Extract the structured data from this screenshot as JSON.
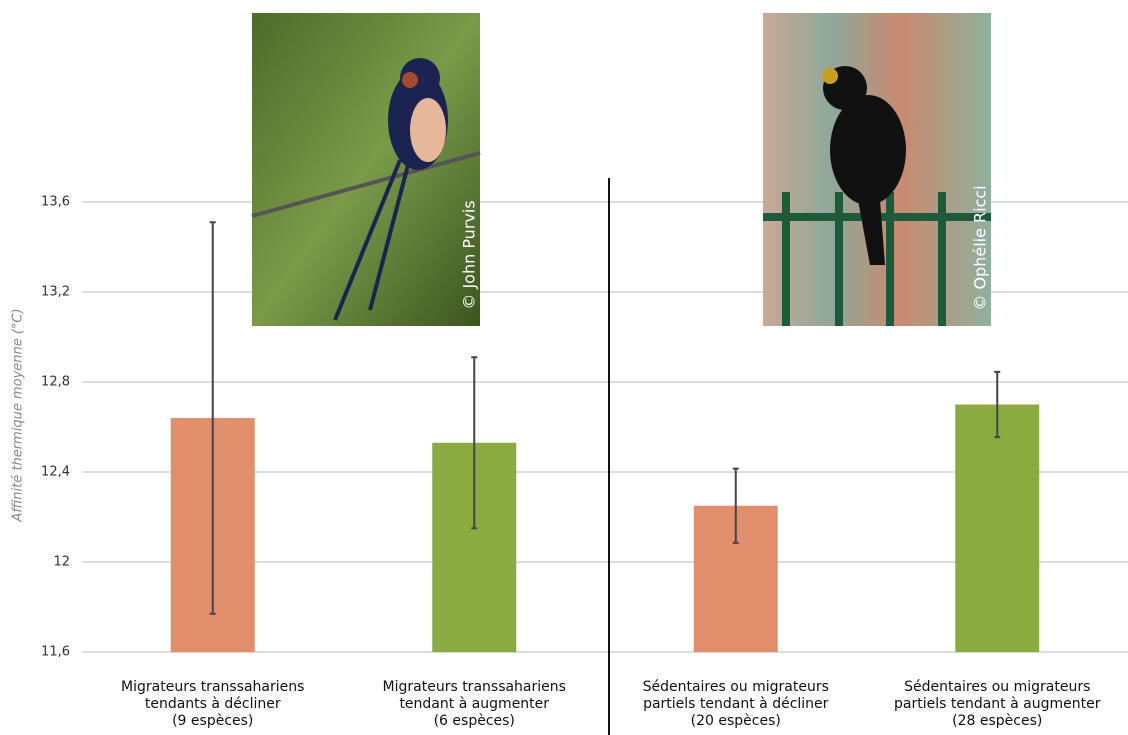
{
  "chart_data": {
    "type": "bar",
    "y_label": "Affinité thermique moyenne (°C)",
    "categories": [
      "Migrateurs transsahariens\ntendants à décliner\n(9 espèces)",
      "Migrateurs transsahariens\ntendant à augmenter\n(6 espèces)",
      "Sédentaires ou migrateurs\npartiels tendant à décliner\n(20 espèces)",
      "Sédentaires ou migrateurs\npartiels tendant à augmenter\n(28 espèces)"
    ],
    "values": [
      12.64,
      12.53,
      12.25,
      12.7
    ],
    "errors": [
      0.87,
      0.38,
      0.165,
      0.145
    ],
    "colors": [
      "#e08e6b",
      "#8bab42",
      "#e08e6b",
      "#8bab42"
    ],
    "ylim": [
      11.6,
      13.6
    ],
    "yticks": [
      {
        "value": 11.6,
        "label": "11,6"
      },
      12,
      {
        "value": 12.4,
        "label": "12,4"
      },
      {
        "value": 12.8,
        "label": "12,8"
      },
      {
        "value": 13.2,
        "label": "13,2"
      },
      {
        "value": 13.6,
        "label": "13,6"
      }
    ],
    "grid": true,
    "annotations": [
      "© John Purvis",
      "© Ophélie Ricci"
    ]
  }
}
